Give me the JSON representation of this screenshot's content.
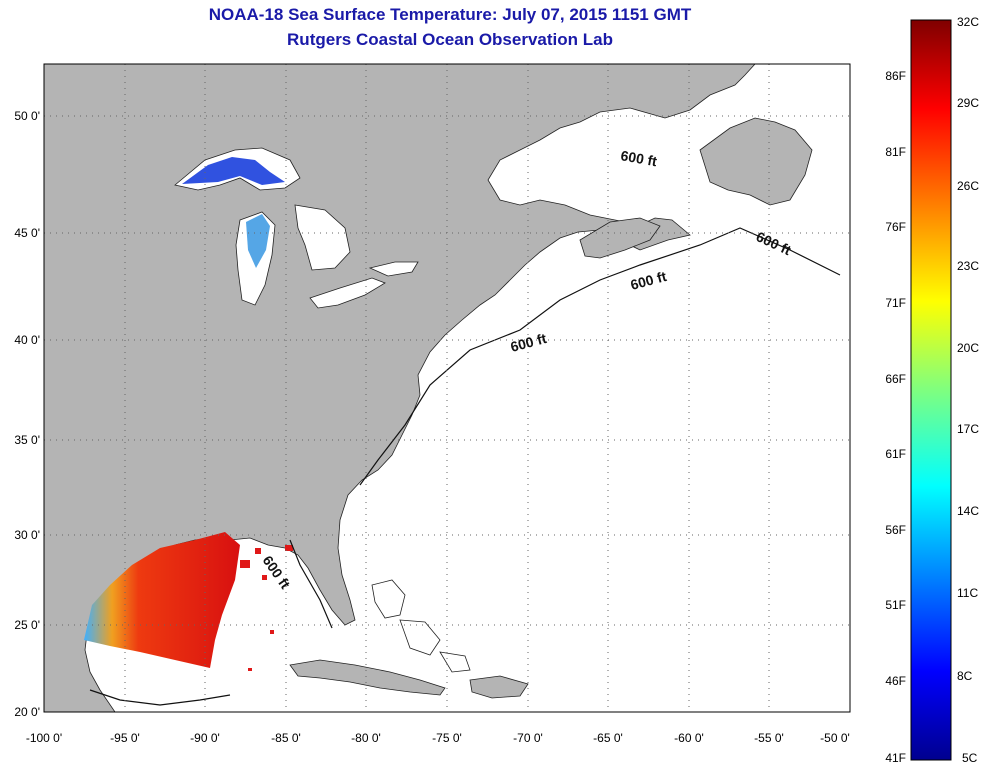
{
  "header": {
    "title": "NOAA-18 Sea Surface Temperature:  July 07, 2015 1151 GMT",
    "subtitle": "Rutgers Coastal Ocean Observation Lab"
  },
  "map": {
    "lon_range": [
      -100,
      -50
    ],
    "lat_range": [
      20,
      52.5
    ],
    "lon_ticks": [
      "-100 0'",
      "-95 0'",
      "-90 0'",
      "-85 0'",
      "-80 0'",
      "-75 0'",
      "-70 0'",
      "-65 0'",
      "-60 0'",
      "-55 0'",
      "-50 0'"
    ],
    "lat_ticks": [
      "20 0'",
      "25 0'",
      "30 0'",
      "35 0'",
      "40 0'",
      "45 0'",
      "50 0'"
    ],
    "isobath_labels": [
      "600 ft",
      "600 ft",
      "600 ft",
      "600 ft",
      "600 ft"
    ],
    "grid": "dotted",
    "land_color": "#b4b4b4",
    "ocean_color": "#ffffff"
  },
  "colorbar": {
    "celsius_labels": [
      "32C",
      "29C",
      "26C",
      "23C",
      "20C",
      "17C",
      "14C",
      "11C",
      "8C",
      "5C"
    ],
    "fahrenheit_labels": [
      "86F",
      "81F",
      "76F",
      "71F",
      "66F",
      "61F",
      "56F",
      "51F",
      "46F",
      "41F"
    ],
    "colors": [
      "#00008f",
      "#0000ff",
      "#007fff",
      "#00ffff",
      "#7fff7f",
      "#ffff00",
      "#ff7f00",
      "#ff0000",
      "#7f0000"
    ]
  }
}
